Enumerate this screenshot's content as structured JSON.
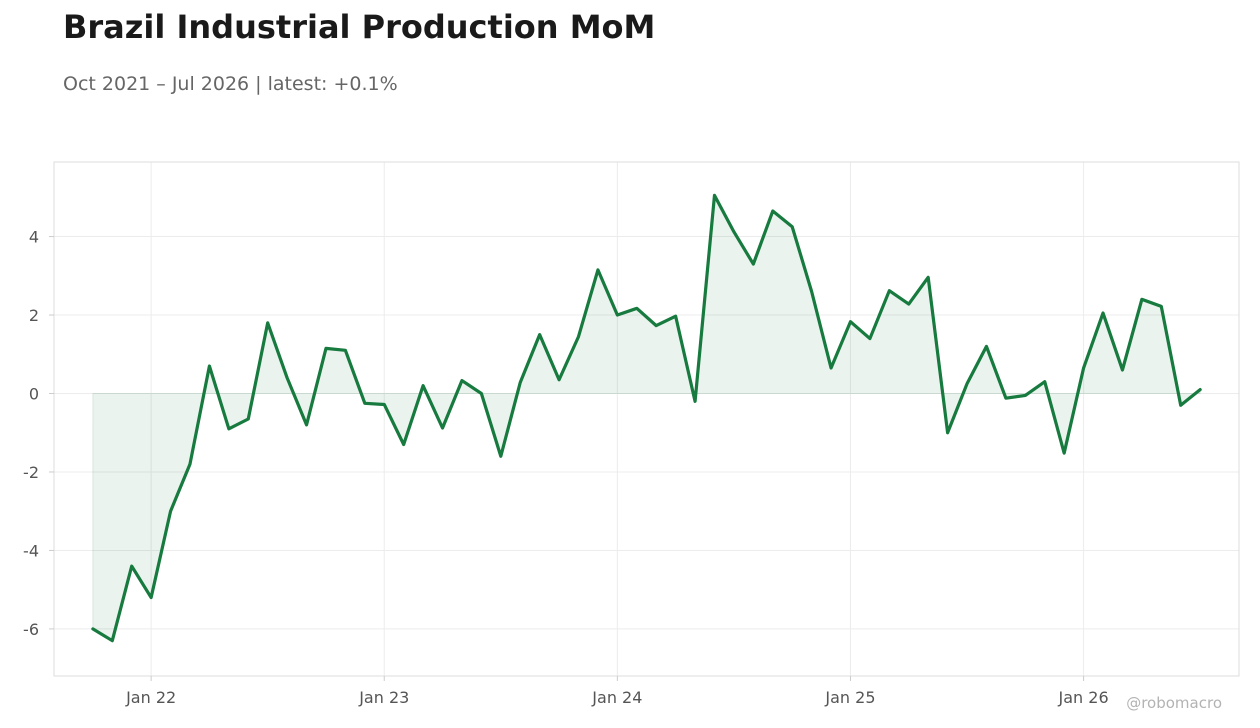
{
  "header": {
    "title": "Brazil Industrial Production MoM",
    "subtitle": "Oct 2021 – Jul 2026 | latest: +0.1%"
  },
  "footer": {
    "watermark": "@robomacro"
  },
  "colors": {
    "line": "#177a3e",
    "fill": "#177a3e",
    "grid": "#ececec",
    "frame": "#dddddd",
    "tick_text": "#555555"
  },
  "chart_data": {
    "type": "area",
    "title": "Brazil Industrial Production MoM",
    "subtitle": "Oct 2021 – Jul 2026 | latest: +0.1%",
    "xlabel": "",
    "ylabel": "",
    "x_ticks": [
      "Jan 22",
      "Jan 23",
      "Jan 24",
      "Jan 25",
      "Jan 26"
    ],
    "y_ticks": [
      -6,
      -4,
      -2,
      0,
      2,
      4
    ],
    "xlim": [
      "2021-08",
      "2026-09"
    ],
    "ylim": [
      -7.2,
      5.9
    ],
    "grid": true,
    "legend": "none",
    "series": [
      {
        "x": [
          "2021-10",
          "2021-11",
          "2021-12",
          "2022-01",
          "2022-02",
          "2022-03",
          "2022-04",
          "2022-05",
          "2022-06",
          "2022-07",
          "2022-08",
          "2022-09",
          "2022-10",
          "2022-11",
          "2022-12",
          "2023-01",
          "2023-02",
          "2023-03",
          "2023-04",
          "2023-05",
          "2023-06",
          "2023-07",
          "2023-08",
          "2023-09",
          "2023-10",
          "2023-11",
          "2023-12",
          "2024-01",
          "2024-02",
          "2024-03",
          "2024-04",
          "2024-05",
          "2024-06",
          "2024-07",
          "2024-08",
          "2024-09",
          "2024-10",
          "2024-11",
          "2024-12",
          "2025-01",
          "2025-02",
          "2025-03",
          "2025-04",
          "2025-05",
          "2025-06",
          "2025-07",
          "2025-08",
          "2025-09",
          "2025-10",
          "2025-11",
          "2025-12",
          "2026-01",
          "2026-02",
          "2026-03",
          "2026-04",
          "2026-05",
          "2026-06",
          "2026-07"
        ],
        "values": [
          -6.0,
          -6.3,
          -4.4,
          -5.2,
          -3.0,
          -1.8,
          0.7,
          -0.9,
          -0.65,
          1.8,
          0.4,
          -0.8,
          1.15,
          1.1,
          -0.25,
          -0.28,
          -1.3,
          0.2,
          -0.88,
          0.33,
          0.0,
          -1.6,
          0.28,
          1.5,
          0.35,
          1.45,
          3.15,
          2.0,
          2.17,
          1.73,
          1.97,
          -0.2,
          5.05,
          4.12,
          3.3,
          4.65,
          4.25,
          2.6,
          0.65,
          1.83,
          1.4,
          2.62,
          2.28,
          2.96,
          -1.0,
          0.25,
          1.2,
          -0.12,
          -0.05,
          0.3,
          -1.52,
          0.65,
          2.05,
          0.6,
          2.4,
          2.22,
          -0.3,
          0.1
        ]
      }
    ]
  }
}
